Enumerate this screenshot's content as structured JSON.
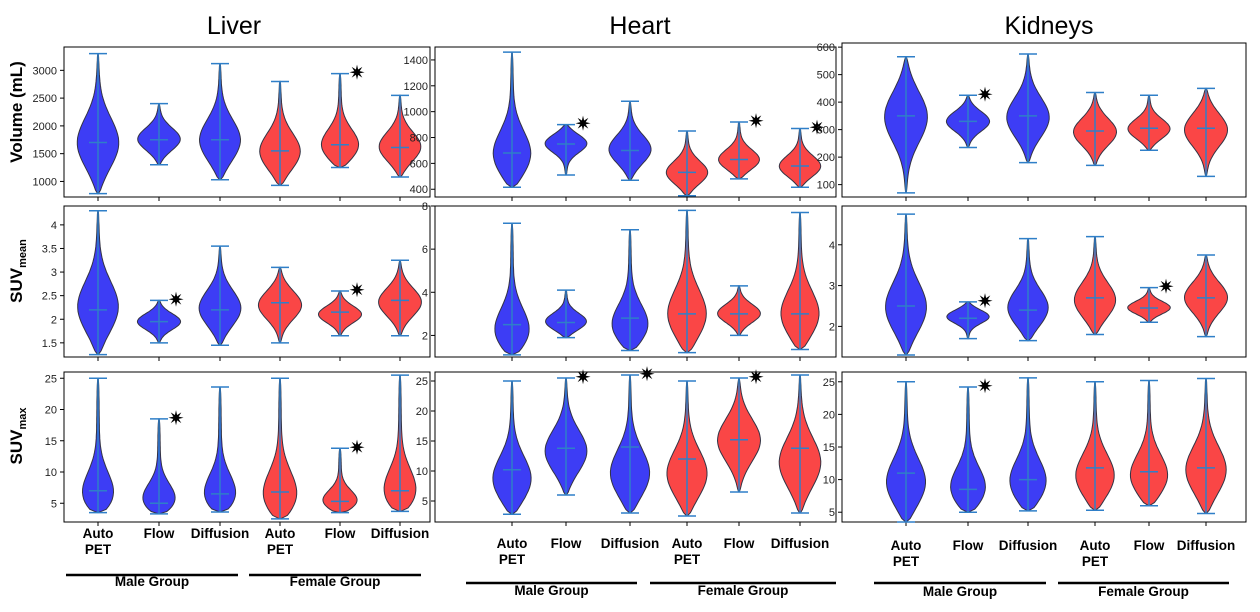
{
  "figure": {
    "columns": [
      "Liver",
      "Heart",
      "Kidneys"
    ],
    "rows": [
      {
        "label": "Volume (mL)",
        "sub": ""
      },
      {
        "label": "SUV",
        "sub": "mean"
      },
      {
        "label": "SUV",
        "sub": "max"
      }
    ],
    "categories": [
      [
        "Auto",
        "PET"
      ],
      [
        "Flow"
      ],
      [
        "Diffusion"
      ],
      [
        "Auto",
        "PET"
      ],
      [
        "Flow"
      ],
      [
        "Diffusion"
      ]
    ],
    "groups": [
      "Male Group",
      "Female Group"
    ],
    "colors": {
      "male": "#3d3df5",
      "female": "#fa4646",
      "whisker": "#2f7fc8",
      "outline": "#333344"
    },
    "significance_marker": "✷"
  },
  "chart_data": [
    {
      "type": "violin",
      "organ": "Liver",
      "metric": "Volume (mL)",
      "ylim": [
        720,
        3420
      ],
      "yticks": [
        1000,
        1500,
        2000,
        2500,
        3000
      ],
      "series": [
        {
          "group": "Male Group",
          "category": "Auto PET",
          "min": 780,
          "max": 3300,
          "median": 1700,
          "bulge": 1650,
          "starred": false
        },
        {
          "group": "Male Group",
          "category": "Flow",
          "min": 1300,
          "max": 2400,
          "median": 1750,
          "bulge": 1750,
          "starred": false
        },
        {
          "group": "Male Group",
          "category": "Diffusion",
          "min": 1030,
          "max": 3120,
          "median": 1750,
          "bulge": 1700,
          "starred": false
        },
        {
          "group": "Female Group",
          "category": "Auto PET",
          "min": 930,
          "max": 2800,
          "median": 1550,
          "bulge": 1500,
          "starred": false
        },
        {
          "group": "Female Group",
          "category": "Flow",
          "min": 1250,
          "max": 2940,
          "median": 1660,
          "bulge": 1600,
          "starred": true
        },
        {
          "group": "Female Group",
          "category": "Diffusion",
          "min": 1080,
          "max": 2550,
          "median": 1610,
          "bulge": 1600,
          "starred": false
        }
      ]
    },
    {
      "type": "violin",
      "organ": "Heart",
      "metric": "Volume (mL)",
      "ylim": [
        340,
        1500
      ],
      "yticks": [
        400,
        600,
        800,
        1000,
        1200,
        1400
      ],
      "series": [
        {
          "group": "Male Group",
          "category": "Auto PET",
          "min": 415,
          "max": 1460,
          "median": 680,
          "bulge": 640,
          "starred": false
        },
        {
          "group": "Male Group",
          "category": "Flow",
          "min": 510,
          "max": 900,
          "median": 750,
          "bulge": 760,
          "starred": true
        },
        {
          "group": "Male Group",
          "category": "Diffusion",
          "min": 470,
          "max": 1080,
          "median": 700,
          "bulge": 700,
          "starred": false
        },
        {
          "group": "Female Group",
          "category": "Auto PET",
          "min": 350,
          "max": 850,
          "median": 530,
          "bulge": 520,
          "starred": false
        },
        {
          "group": "Female Group",
          "category": "Flow",
          "min": 480,
          "max": 920,
          "median": 630,
          "bulge": 620,
          "starred": true
        },
        {
          "group": "Female Group",
          "category": "Diffusion",
          "min": 415,
          "max": 870,
          "median": 580,
          "bulge": 570,
          "starred": true
        }
      ]
    },
    {
      "type": "violin",
      "organ": "Kidneys",
      "metric": "Volume (mL)",
      "ylim": [
        55,
        615
      ],
      "yticks": [
        100,
        200,
        300,
        400,
        500,
        600
      ],
      "series": [
        {
          "group": "Male Group",
          "category": "Auto PET",
          "min": 70,
          "max": 565,
          "median": 350,
          "bulge": 350,
          "starred": false
        },
        {
          "group": "Male Group",
          "category": "Flow",
          "min": 235,
          "max": 425,
          "median": 330,
          "bulge": 330,
          "starred": true
        },
        {
          "group": "Male Group",
          "category": "Diffusion",
          "min": 180,
          "max": 575,
          "median": 350,
          "bulge": 340,
          "starred": false
        },
        {
          "group": "Female Group",
          "category": "Auto PET",
          "min": 170,
          "max": 435,
          "median": 295,
          "bulge": 290,
          "starred": false
        },
        {
          "group": "Female Group",
          "category": "Flow",
          "min": 225,
          "max": 425,
          "median": 305,
          "bulge": 300,
          "starred": false
        },
        {
          "group": "Female Group",
          "category": "Diffusion",
          "min": 130,
          "max": 450,
          "median": 305,
          "bulge": 300,
          "starred": false
        }
      ]
    },
    {
      "type": "violin",
      "organ": "Liver",
      "metric": "SUV mean",
      "ylim": [
        1.2,
        4.4
      ],
      "yticks": [
        1.5,
        2.0,
        2.5,
        3.0,
        3.5,
        4.0
      ],
      "series": [
        {
          "group": "Male Group",
          "category": "Auto PET",
          "min": 1.25,
          "max": 4.3,
          "median": 2.2,
          "bulge": 2.2,
          "starred": false
        },
        {
          "group": "Male Group",
          "category": "Flow",
          "min": 1.5,
          "max": 2.4,
          "median": 1.95,
          "bulge": 1.95,
          "starred": true
        },
        {
          "group": "Male Group",
          "category": "Diffusion",
          "min": 1.45,
          "max": 3.55,
          "median": 2.2,
          "bulge": 2.2,
          "starred": false
        },
        {
          "group": "Female Group",
          "category": "Auto PET",
          "min": 1.5,
          "max": 3.1,
          "median": 2.35,
          "bulge": 2.3,
          "starred": false
        },
        {
          "group": "Female Group",
          "category": "Flow",
          "min": 1.65,
          "max": 2.6,
          "median": 2.15,
          "bulge": 2.1,
          "starred": true
        },
        {
          "group": "Female Group",
          "category": "Diffusion",
          "min": 1.65,
          "max": 3.25,
          "median": 2.4,
          "bulge": 2.35,
          "starred": false
        }
      ]
    },
    {
      "type": "violin",
      "organ": "Heart",
      "metric": "SUV mean",
      "ylim": [
        1.0,
        8.0
      ],
      "yticks": [
        2,
        4,
        6,
        8
      ],
      "series": [
        {
          "group": "Male Group",
          "category": "Auto PET",
          "min": 1.1,
          "max": 7.2,
          "median": 2.5,
          "bulge": 2.0,
          "starred": false
        },
        {
          "group": "Male Group",
          "category": "Flow",
          "min": 1.9,
          "max": 4.1,
          "median": 2.6,
          "bulge": 2.6,
          "starred": false
        },
        {
          "group": "Male Group",
          "category": "Diffusion",
          "min": 1.3,
          "max": 6.9,
          "median": 2.8,
          "bulge": 2.3,
          "starred": false
        },
        {
          "group": "Female Group",
          "category": "Auto PET",
          "min": 1.2,
          "max": 7.8,
          "median": 3.0,
          "bulge": 2.8,
          "starred": false
        },
        {
          "group": "Female Group",
          "category": "Flow",
          "min": 2.0,
          "max": 4.3,
          "median": 3.0,
          "bulge": 3.0,
          "starred": false
        },
        {
          "group": "Female Group",
          "category": "Diffusion",
          "min": 1.35,
          "max": 7.7,
          "median": 3.0,
          "bulge": 2.8,
          "starred": false
        }
      ]
    },
    {
      "type": "violin",
      "organ": "Kidneys",
      "metric": "SUV mean",
      "ylim": [
        1.25,
        4.95
      ],
      "yticks": [
        2,
        3,
        4
      ],
      "series": [
        {
          "group": "Male Group",
          "category": "Auto PET",
          "min": 1.3,
          "max": 4.75,
          "median": 2.5,
          "bulge": 2.4,
          "starred": false
        },
        {
          "group": "Male Group",
          "category": "Flow",
          "min": 1.7,
          "max": 2.6,
          "median": 2.2,
          "bulge": 2.25,
          "starred": true
        },
        {
          "group": "Male Group",
          "category": "Diffusion",
          "min": 1.65,
          "max": 4.15,
          "median": 2.4,
          "bulge": 2.4,
          "starred": false
        },
        {
          "group": "Female Group",
          "category": "Auto PET",
          "min": 1.8,
          "max": 4.2,
          "median": 2.7,
          "bulge": 2.6,
          "starred": false
        },
        {
          "group": "Female Group",
          "category": "Flow",
          "min": 2.1,
          "max": 2.95,
          "median": 2.45,
          "bulge": 2.45,
          "starred": true
        },
        {
          "group": "Female Group",
          "category": "Diffusion",
          "min": 1.75,
          "max": 3.75,
          "median": 2.7,
          "bulge": 2.7,
          "starred": false
        }
      ]
    },
    {
      "type": "violin",
      "organ": "Liver",
      "metric": "SUV max",
      "ylim": [
        2.0,
        26.0
      ],
      "yticks": [
        5,
        10,
        15,
        20,
        25
      ],
      "series": [
        {
          "group": "Male Group",
          "category": "Auto PET",
          "min": 3.5,
          "max": 25.0,
          "median": 7.0,
          "bulge": 5.5,
          "starred": false
        },
        {
          "group": "Male Group",
          "category": "Flow",
          "min": 3.3,
          "max": 18.5,
          "median": 5.0,
          "bulge": 5.0,
          "starred": true
        },
        {
          "group": "Male Group",
          "category": "Diffusion",
          "min": 3.6,
          "max": 23.6,
          "median": 6.5,
          "bulge": 5.5,
          "starred": false
        },
        {
          "group": "Female Group",
          "category": "Auto PET",
          "min": 2.5,
          "max": 25.0,
          "median": 6.8,
          "bulge": 5.5,
          "starred": false
        },
        {
          "group": "Female Group",
          "category": "Flow",
          "min": 3.5,
          "max": 13.8,
          "median": 5.3,
          "bulge": 5.0,
          "starred": true
        },
        {
          "group": "Female Group",
          "category": "Diffusion",
          "min": 3.7,
          "max": 25.5,
          "median": 7.0,
          "bulge": 6.0,
          "starred": false
        }
      ]
    },
    {
      "type": "violin",
      "organ": "Heart",
      "metric": "SUV max",
      "ylim": [
        1.5,
        26.5
      ],
      "yticks": [
        5,
        10,
        15,
        20,
        25
      ],
      "series": [
        {
          "group": "Male Group",
          "category": "Auto PET",
          "min": 2.8,
          "max": 25.0,
          "median": 10.2,
          "bulge": 8.0,
          "starred": false
        },
        {
          "group": "Male Group",
          "category": "Flow",
          "min": 6.0,
          "max": 25.5,
          "median": 13.8,
          "bulge": 13.0,
          "starred": true
        },
        {
          "group": "Male Group",
          "category": "Diffusion",
          "min": 3.0,
          "max": 26.0,
          "median": 14.0,
          "bulge": 9.0,
          "starred": true
        },
        {
          "group": "Female Group",
          "category": "Auto PET",
          "min": 2.5,
          "max": 25.0,
          "median": 12.0,
          "bulge": 9.0,
          "starred": false
        },
        {
          "group": "Female Group",
          "category": "Flow",
          "min": 6.5,
          "max": 25.5,
          "median": 15.2,
          "bulge": 15.0,
          "starred": true
        },
        {
          "group": "Female Group",
          "category": "Diffusion",
          "min": 3.0,
          "max": 26.0,
          "median": 13.8,
          "bulge": 11.0,
          "starred": false
        }
      ]
    },
    {
      "type": "violin",
      "organ": "Kidneys",
      "metric": "SUV max",
      "ylim": [
        3.5,
        26.5
      ],
      "yticks": [
        5,
        10,
        15,
        20,
        25
      ],
      "series": [
        {
          "group": "Male Group",
          "category": "Auto PET",
          "min": 3.5,
          "max": 25.0,
          "median": 11.0,
          "bulge": 9.0,
          "starred": false
        },
        {
          "group": "Male Group",
          "category": "Flow",
          "min": 5.0,
          "max": 24.2,
          "median": 8.5,
          "bulge": 8.0,
          "starred": true
        },
        {
          "group": "Male Group",
          "category": "Diffusion",
          "min": 5.2,
          "max": 25.6,
          "median": 10.0,
          "bulge": 9.0,
          "starred": false
        },
        {
          "group": "Female Group",
          "category": "Auto PET",
          "min": 5.3,
          "max": 25.0,
          "median": 11.8,
          "bulge": 10.0,
          "starred": false
        },
        {
          "group": "Female Group",
          "category": "Flow",
          "min": 6.0,
          "max": 25.2,
          "median": 11.2,
          "bulge": 10.0,
          "starred": false
        },
        {
          "group": "Female Group",
          "category": "Diffusion",
          "min": 4.8,
          "max": 25.5,
          "median": 11.8,
          "bulge": 11.0,
          "starred": false
        }
      ]
    }
  ]
}
